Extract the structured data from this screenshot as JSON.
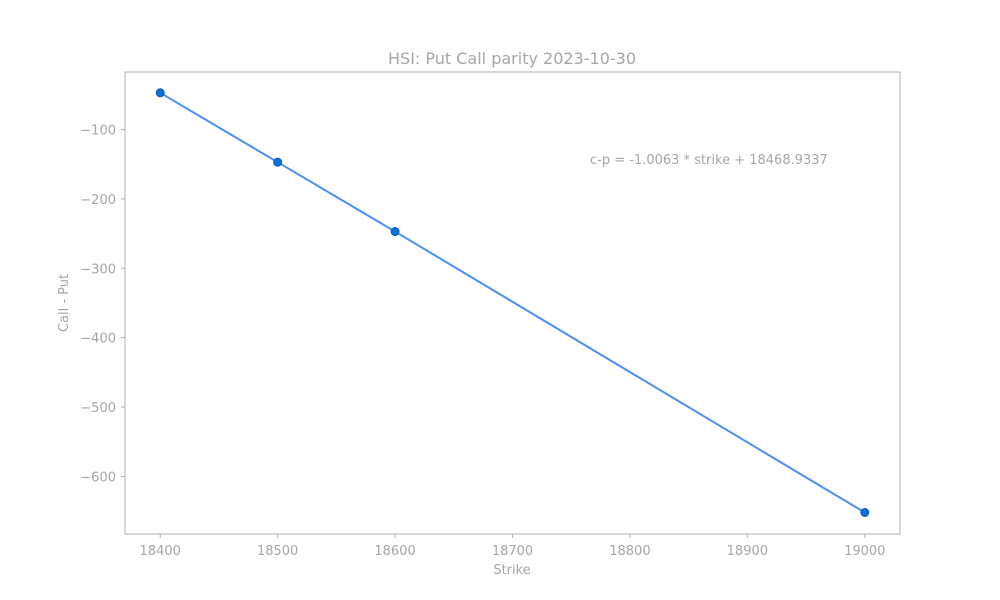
{
  "chart_data": {
    "type": "scatter",
    "title": "HSI: Put Call parity 2023-10-30",
    "xlabel": "Strike",
    "ylabel": "Call - Put",
    "annotation": "c-p = -1.0063 * strike + 18468.9337",
    "xlim": [
      18370,
      19030
    ],
    "ylim": [
      -683,
      -17
    ],
    "x_ticks": [
      18400,
      18500,
      18600,
      18700,
      18800,
      18900,
      19000
    ],
    "x_tick_labels": [
      "18400",
      "18500",
      "18600",
      "18700",
      "18800",
      "18900",
      "19000"
    ],
    "y_ticks": [
      -100,
      -200,
      -300,
      -400,
      -500,
      -600
    ],
    "y_tick_labels": [
      "−100",
      "−200",
      "−300",
      "−400",
      "−500",
      "−600"
    ],
    "grid": false,
    "series": [
      {
        "x": [
          18400,
          18500,
          18600,
          19000
        ],
        "y": [
          -47,
          -147,
          -247,
          -652
        ],
        "color": "#0b6fd6"
      }
    ],
    "fit_line": {
      "slope": -1.0063,
      "intercept": 18468.9337,
      "x_range": [
        18400,
        19000
      ],
      "color": "#4a8ff5"
    }
  }
}
